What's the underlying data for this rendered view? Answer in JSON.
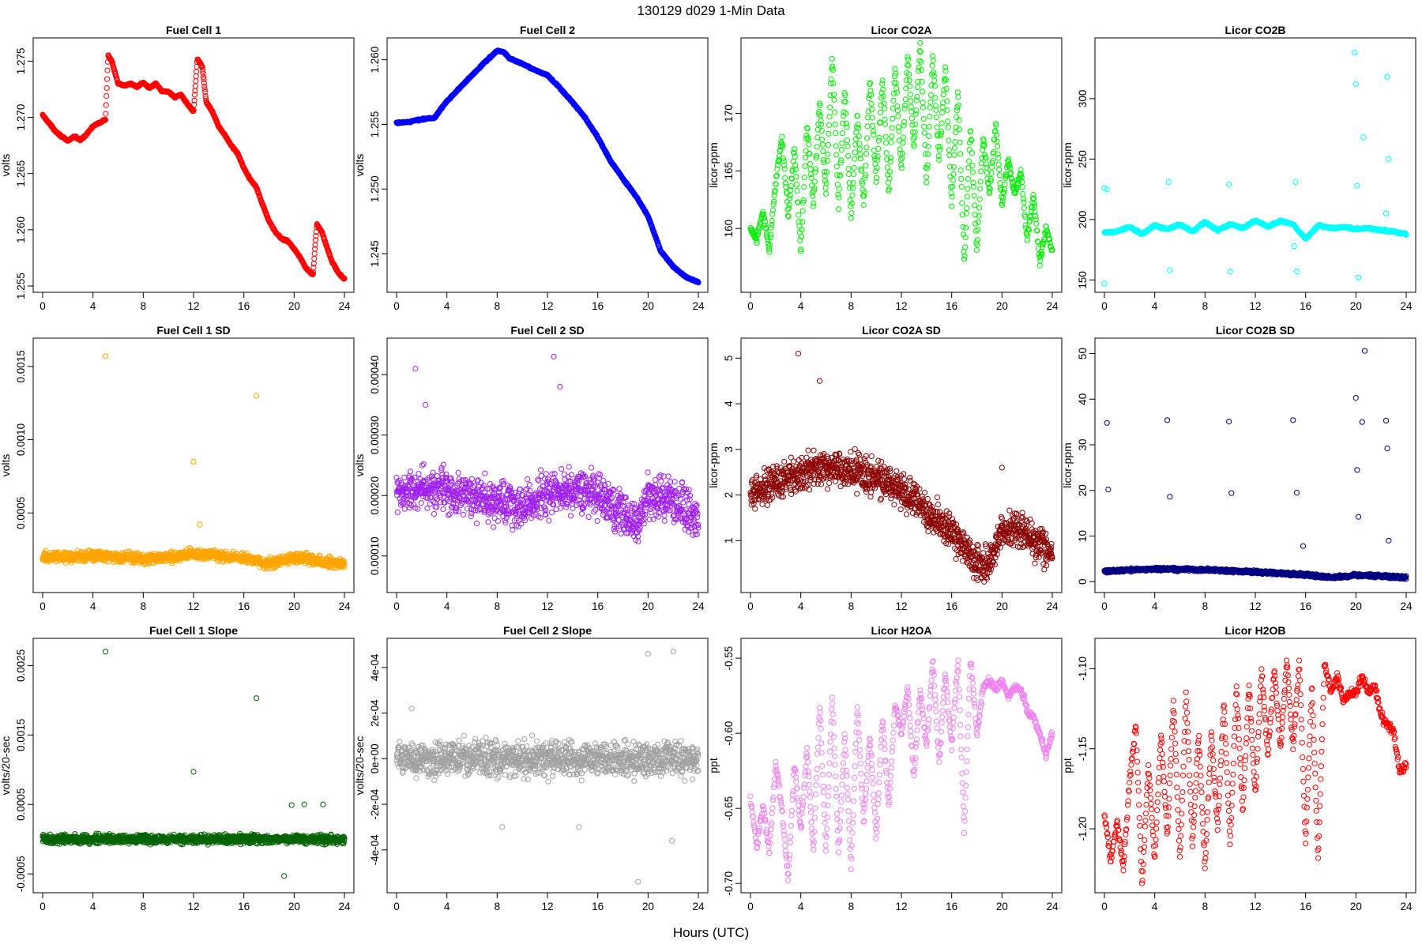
{
  "figure": {
    "title": "130129   d029   1-Min Data",
    "xlabel": "Hours (UTC)"
  },
  "chart_data": [
    {
      "id": "fc1",
      "type": "scatter",
      "title": "Fuel Cell 1",
      "ylabel": "volts",
      "color": "#ff0000",
      "xlim": [
        0,
        24
      ],
      "ylim": [
        1.255,
        1.2765
      ],
      "x_ticks": [
        "0",
        "4",
        "8",
        "12",
        "16",
        "20",
        "24"
      ],
      "y_ticks": [
        "1.255",
        "1.260",
        "1.265",
        "1.270",
        "1.275"
      ],
      "y_tick_values": [
        1.255,
        1.26,
        1.265,
        1.27,
        1.275
      ],
      "x": [
        0,
        0.5,
        1,
        1.5,
        2,
        2.5,
        3,
        3.5,
        4,
        4.5,
        5,
        5.2,
        5.5,
        6,
        6.5,
        7,
        7.5,
        8,
        8.5,
        9,
        9.5,
        10,
        10.5,
        11,
        11.5,
        12,
        12.3,
        12.7,
        13,
        13.5,
        14,
        14.5,
        15,
        15.5,
        16,
        16.5,
        17,
        17.5,
        18,
        18.5,
        19,
        19.5,
        20,
        20.5,
        21,
        21.5,
        21.8,
        22.2,
        22.5,
        23,
        23.5,
        24
      ],
      "y": [
        1.2702,
        1.2695,
        1.2688,
        1.2683,
        1.2679,
        1.2683,
        1.268,
        1.2685,
        1.2692,
        1.2695,
        1.2698,
        1.2755,
        1.275,
        1.273,
        1.2728,
        1.273,
        1.2727,
        1.2731,
        1.2726,
        1.273,
        1.2723,
        1.2723,
        1.2718,
        1.272,
        1.2712,
        1.2705,
        1.2752,
        1.2745,
        1.2714,
        1.2705,
        1.2692,
        1.2684,
        1.2675,
        1.2668,
        1.2655,
        1.2645,
        1.2638,
        1.2622,
        1.2608,
        1.2598,
        1.2592,
        1.259,
        1.2583,
        1.2575,
        1.2565,
        1.256,
        1.2605,
        1.2598,
        1.2588,
        1.2572,
        1.2562,
        1.2556
      ]
    },
    {
      "id": "fc2",
      "type": "scatter",
      "title": "Fuel Cell 2",
      "ylabel": "volts",
      "color": "#0000ff",
      "xlim": [
        0,
        24
      ],
      "ylim": [
        1.2425,
        1.2612
      ],
      "x_ticks": [
        "0",
        "4",
        "8",
        "12",
        "16",
        "20",
        "24"
      ],
      "y_ticks": [
        "1.245",
        "1.250",
        "1.255",
        "1.260"
      ],
      "y_tick_values": [
        1.245,
        1.25,
        1.255,
        1.26
      ],
      "x": [
        0,
        1,
        2,
        3,
        4,
        5,
        6,
        7,
        8,
        8.5,
        9,
        10,
        11,
        12,
        13,
        14,
        15,
        16,
        17,
        18,
        19,
        20,
        21,
        22,
        23,
        24
      ],
      "y": [
        1.2551,
        1.2552,
        1.2554,
        1.2555,
        1.2568,
        1.2578,
        1.2588,
        1.2598,
        1.2607,
        1.2606,
        1.2601,
        1.2597,
        1.2592,
        1.2588,
        1.2578,
        1.2567,
        1.2555,
        1.254,
        1.2522,
        1.2508,
        1.2495,
        1.2479,
        1.2452,
        1.244,
        1.2432,
        1.2428
      ]
    },
    {
      "id": "co2a",
      "type": "scatter",
      "title": "Licor CO2A",
      "ylabel": "licor-ppm",
      "color": "#00ee00",
      "xlim": [
        0,
        24
      ],
      "ylim": [
        155,
        176
      ],
      "x_ticks": [
        "0",
        "4",
        "8",
        "12",
        "16",
        "20",
        "24"
      ],
      "y_ticks": [
        "160",
        "165",
        "170"
      ],
      "y_tick_values": [
        160,
        165,
        170
      ],
      "x": [
        0,
        0.5,
        1,
        1.5,
        2,
        2.5,
        3,
        3.5,
        4,
        4.5,
        5,
        5.5,
        6,
        6.5,
        7,
        7.5,
        8,
        8.5,
        9,
        9.5,
        10,
        10.5,
        11,
        11.5,
        12,
        12.5,
        13,
        13.5,
        14,
        14.5,
        15,
        15.5,
        16,
        16.5,
        17,
        17.5,
        18,
        18.5,
        19,
        19.5,
        20,
        20.5,
        21,
        21.5,
        22,
        22.5,
        23,
        23.5,
        24
      ],
      "y": [
        160,
        159,
        161.5,
        158,
        164,
        168,
        161,
        167,
        158,
        169,
        162,
        171,
        163,
        175,
        162,
        172,
        161,
        170,
        162,
        173,
        164,
        173,
        163,
        174,
        165,
        175,
        167,
        176,
        164,
        175,
        166,
        174,
        162,
        172,
        157,
        169,
        158,
        168,
        163,
        169,
        162,
        166,
        163,
        165,
        159,
        163,
        157,
        160,
        158
      ]
    },
    {
      "id": "co2b",
      "type": "scatter",
      "title": "Licor CO2B",
      "ylabel": "licor-ppm",
      "color": "#00ffff",
      "xlim": [
        0,
        24
      ],
      "ylim": [
        145,
        345
      ],
      "x_ticks": [
        "0",
        "4",
        "8",
        "12",
        "16",
        "20",
        "24"
      ],
      "y_ticks": [
        "150",
        "200",
        "250",
        "300"
      ],
      "y_tick_values": [
        150,
        200,
        250,
        300
      ],
      "x": [
        0,
        1,
        2,
        3,
        4,
        5,
        6,
        7,
        8,
        9,
        10,
        11,
        12,
        13,
        14,
        15,
        16,
        17,
        18,
        19,
        20,
        21,
        22,
        23,
        24
      ],
      "y": [
        189,
        190,
        194,
        188,
        195,
        192,
        196,
        190,
        198,
        191,
        196,
        193,
        199,
        194,
        199,
        196,
        184,
        195,
        193,
        194,
        192,
        193,
        191,
        190,
        188
      ],
      "outliers_x": [
        0,
        0,
        0.2,
        5.1,
        5.2,
        9.9,
        10,
        15.2,
        15.3,
        15.1,
        19.9,
        20,
        20.1,
        20.2,
        20.6,
        22.5,
        22.6,
        22.4
      ],
      "outliers_y": [
        147,
        226,
        225,
        231,
        158,
        229,
        157,
        231,
        157,
        178,
        338,
        312,
        228,
        152,
        268,
        318,
        250,
        205
      ]
    },
    {
      "id": "fc1sd",
      "type": "scatter",
      "title": "Fuel Cell 1 SD",
      "ylabel": "volts",
      "color": "#ffa500",
      "xlim": [
        0,
        24
      ],
      "ylim": [
        0,
        0.00165
      ],
      "x_ticks": [
        "0",
        "4",
        "8",
        "12",
        "16",
        "20",
        "24"
      ],
      "y_ticks": [
        "0.0005",
        "0.0010",
        "0.0015"
      ],
      "y_tick_values": [
        0.0005,
        0.001,
        0.0015
      ],
      "x": [
        0,
        2,
        4,
        6,
        8,
        10,
        12,
        14,
        16,
        18,
        20,
        22,
        24
      ],
      "y": [
        0.0002,
        0.0002,
        0.00021,
        0.0002,
        0.00019,
        0.0002,
        0.00022,
        0.00021,
        0.00019,
        0.00015,
        0.0002,
        0.00017,
        0.00015
      ],
      "outliers_x": [
        5,
        17,
        12,
        12.5
      ],
      "outliers_y": [
        0.00157,
        0.0013,
        0.00085,
        0.00042
      ]
    },
    {
      "id": "fc2sd",
      "type": "scatter",
      "title": "Fuel Cell 2 SD",
      "ylabel": "volts",
      "color": "#a020f0",
      "xlim": [
        0,
        24
      ],
      "ylim": [
        5e-05,
        0.00045
      ],
      "x_ticks": [
        "0",
        "4",
        "8",
        "12",
        "16",
        "20",
        "24"
      ],
      "y_ticks": [
        "0.00010",
        "0.00020",
        "0.00030",
        "0.00040"
      ],
      "y_tick_values": [
        0.0001,
        0.0002,
        0.0003,
        0.0004
      ],
      "x": [
        0,
        2,
        4,
        6,
        8,
        10,
        12,
        14,
        16,
        18,
        19,
        20,
        22,
        24
      ],
      "y": [
        0.0002,
        0.00021,
        0.00021,
        0.0002,
        0.00019,
        0.00018,
        0.0002,
        0.00021,
        0.0002,
        0.00017,
        0.00015,
        0.0002,
        0.00019,
        0.00016
      ],
      "outliers_x": [
        1.5,
        12.5,
        13,
        2.3
      ],
      "outliers_y": [
        0.00041,
        0.00043,
        0.00038,
        0.00035
      ]
    },
    {
      "id": "co2asd",
      "type": "scatter",
      "title": "Licor CO2A SD",
      "ylabel": "licor-ppm",
      "color": "#8b0000",
      "xlim": [
        0,
        24
      ],
      "ylim": [
        0,
        5.3
      ],
      "x_ticks": [
        "0",
        "4",
        "8",
        "12",
        "16",
        "20",
        "24"
      ],
      "y_ticks": [
        "1",
        "2",
        "3",
        "4",
        "5"
      ],
      "y_tick_values": [
        1,
        2,
        3,
        4,
        5
      ],
      "x": [
        0,
        2,
        4,
        6,
        8,
        10,
        12,
        14,
        16,
        17,
        18,
        18.5,
        19,
        20,
        21,
        22,
        23,
        24
      ],
      "y": [
        2.0,
        2.3,
        2.5,
        2.6,
        2.5,
        2.4,
        2.1,
        1.6,
        1.2,
        0.8,
        0.5,
        0.4,
        0.6,
        1.2,
        1.3,
        1.1,
        0.9,
        0.7
      ],
      "outliers_x": [
        3.8,
        5.5,
        20
      ],
      "outliers_y": [
        5.1,
        4.5,
        2.6
      ]
    },
    {
      "id": "co2bsd",
      "type": "scatter",
      "title": "Licor CO2B SD",
      "ylabel": "licor-ppm",
      "color": "#000080",
      "xlim": [
        0,
        24
      ],
      "ylim": [
        -1,
        52
      ],
      "x_ticks": [
        "0",
        "4",
        "8",
        "12",
        "16",
        "20",
        "24"
      ],
      "y_ticks": [
        "0",
        "10",
        "20",
        "30",
        "40",
        "50"
      ],
      "y_tick_values": [
        0,
        10,
        20,
        30,
        40,
        50
      ],
      "x": [
        0,
        4,
        8,
        12,
        16,
        18,
        19,
        20,
        22,
        24
      ],
      "y": [
        2.3,
        2.8,
        2.6,
        2.1,
        1.5,
        0.9,
        1.1,
        1.4,
        1.2,
        0.9
      ],
      "outliers_x": [
        0.2,
        0.3,
        5,
        5.2,
        9.9,
        10.1,
        15,
        15.3,
        15.8,
        20,
        20.1,
        20.2,
        20.5,
        20.7,
        22.4,
        22.5,
        22.6
      ],
      "outliers_y": [
        34.8,
        20.2,
        35.4,
        18.6,
        35.1,
        19.4,
        35.4,
        19.5,
        7.8,
        40.3,
        24.5,
        14.2,
        35,
        50.6,
        35.3,
        29.2,
        9
      ]
    },
    {
      "id": "fc1slope",
      "type": "scatter",
      "title": "Fuel Cell 1 Slope",
      "ylabel": "volts/20-sec",
      "color": "#006400",
      "xlim": [
        0,
        24
      ],
      "ylim": [
        -0.00068,
        0.0028
      ],
      "x_ticks": [
        "0",
        "4",
        "8",
        "12",
        "16",
        "20",
        "24"
      ],
      "y_ticks": [
        "-0.0005",
        "0.0005",
        "0.0015",
        "0.0025"
      ],
      "y_tick_values": [
        -0.0005,
        0.0005,
        0.0015,
        0.0025
      ],
      "x": [
        0,
        4,
        8,
        12,
        16,
        20,
        24
      ],
      "y": [
        0,
        0,
        0,
        0,
        0,
        0,
        0
      ],
      "outliers_x": [
        5,
        17,
        12,
        19.8,
        20.8,
        22.3,
        19.2
      ],
      "outliers_y": [
        0.0027,
        0.00203,
        0.00097,
        0.00049,
        0.0005,
        0.0005,
        -0.00053
      ]
    },
    {
      "id": "fc2slope",
      "type": "scatter",
      "title": "Fuel Cell 2 Slope",
      "ylabel": "volts/20-sec",
      "color": "#a0a0a0",
      "xlim": [
        0,
        24
      ],
      "ylim": [
        -0.00056,
        0.0005
      ],
      "x_ticks": [
        "0",
        "4",
        "8",
        "12",
        "16",
        "20",
        "24"
      ],
      "y_ticks": [
        "-4e-04",
        "-2e-04",
        "0e+00",
        "2e-04",
        "4e-04"
      ],
      "y_tick_values": [
        -0.0004,
        -0.0002,
        0,
        0.0002,
        0.0004
      ],
      "x": [
        0,
        4,
        8,
        12,
        16,
        20,
        24
      ],
      "y": [
        0,
        0,
        0,
        0,
        0,
        0,
        0
      ],
      "outliers_x": [
        19.2,
        20,
        22,
        21.9,
        8.4,
        14.5,
        1.2
      ],
      "outliers_y": [
        -0.00054,
        0.00046,
        0.00047,
        -0.00036,
        -0.0003,
        -0.0003,
        0.00022
      ]
    },
    {
      "id": "h2oa",
      "type": "scatter",
      "title": "Licor H2OA",
      "ylabel": "ppt",
      "color": "#ee82ee",
      "xlim": [
        0,
        24
      ],
      "ylim": [
        -0.702,
        -0.541
      ],
      "x_ticks": [
        "0",
        "4",
        "8",
        "12",
        "16",
        "20",
        "24"
      ],
      "y_ticks": [
        "-0.70",
        "-0.65",
        "-0.60",
        "-0.55"
      ],
      "y_tick_values": [
        -0.7,
        -0.65,
        -0.6,
        -0.55
      ],
      "x": [
        0,
        0.5,
        1,
        1.5,
        2,
        2.5,
        3,
        3.5,
        4,
        4.5,
        5,
        5.5,
        6,
        6.5,
        7,
        7.5,
        8,
        8.5,
        9,
        9.5,
        10,
        10.5,
        11,
        11.5,
        12,
        12.5,
        13,
        13.5,
        14,
        14.5,
        15,
        15.5,
        16,
        16.5,
        17,
        17.5,
        18,
        18.5,
        19,
        19.5,
        20,
        20.5,
        21,
        21.5,
        22,
        22.5,
        23,
        23.5,
        24
      ],
      "y": [
        -0.645,
        -0.675,
        -0.648,
        -0.68,
        -0.62,
        -0.65,
        -0.698,
        -0.62,
        -0.665,
        -0.61,
        -0.68,
        -0.58,
        -0.68,
        -0.575,
        -0.68,
        -0.6,
        -0.69,
        -0.58,
        -0.66,
        -0.6,
        -0.67,
        -0.59,
        -0.65,
        -0.58,
        -0.6,
        -0.57,
        -0.63,
        -0.57,
        -0.61,
        -0.55,
        -0.62,
        -0.56,
        -0.61,
        -0.55,
        -0.665,
        -0.55,
        -0.6,
        -0.57,
        -0.565,
        -0.57,
        -0.565,
        -0.575,
        -0.57,
        -0.57,
        -0.585,
        -0.59,
        -0.6,
        -0.615,
        -0.6
      ]
    },
    {
      "id": "h2ob",
      "type": "scatter",
      "title": "Licor H2OB",
      "ylabel": "ppt",
      "color": "#ff0000",
      "xlim": [
        0,
        24
      ],
      "ylim": [
        -1.236,
        -1.085
      ],
      "x_ticks": [
        "0",
        "4",
        "8",
        "12",
        "16",
        "20",
        "24"
      ],
      "y_ticks": [
        "-1.20",
        "-1.15",
        "-1.10"
      ],
      "y_tick_values": [
        -1.2,
        -1.15,
        -1.1
      ],
      "x": [
        0,
        0.5,
        1,
        1.5,
        2,
        2.5,
        3,
        3.5,
        4,
        4.5,
        5,
        5.5,
        6,
        6.5,
        7,
        7.5,
        8,
        8.5,
        9,
        9.5,
        10,
        10.5,
        11,
        11.5,
        12,
        12.5,
        13,
        13.5,
        14,
        14.5,
        15,
        15.5,
        16,
        16.5,
        17,
        17.5,
        18,
        18.5,
        19,
        19.5,
        20,
        20.5,
        21,
        21.5,
        22,
        22.5,
        23,
        23.5,
        24
      ],
      "y": [
        -1.19,
        -1.22,
        -1.195,
        -1.225,
        -1.17,
        -1.135,
        -1.235,
        -1.16,
        -1.22,
        -1.14,
        -1.205,
        -1.12,
        -1.22,
        -1.115,
        -1.21,
        -1.14,
        -1.225,
        -1.14,
        -1.2,
        -1.12,
        -1.21,
        -1.11,
        -1.19,
        -1.11,
        -1.18,
        -1.1,
        -1.155,
        -1.1,
        -1.15,
        -1.095,
        -1.15,
        -1.095,
        -1.21,
        -1.11,
        -1.22,
        -1.095,
        -1.115,
        -1.105,
        -1.12,
        -1.115,
        -1.115,
        -1.105,
        -1.115,
        -1.11,
        -1.13,
        -1.135,
        -1.14,
        -1.165,
        -1.16
      ]
    }
  ]
}
